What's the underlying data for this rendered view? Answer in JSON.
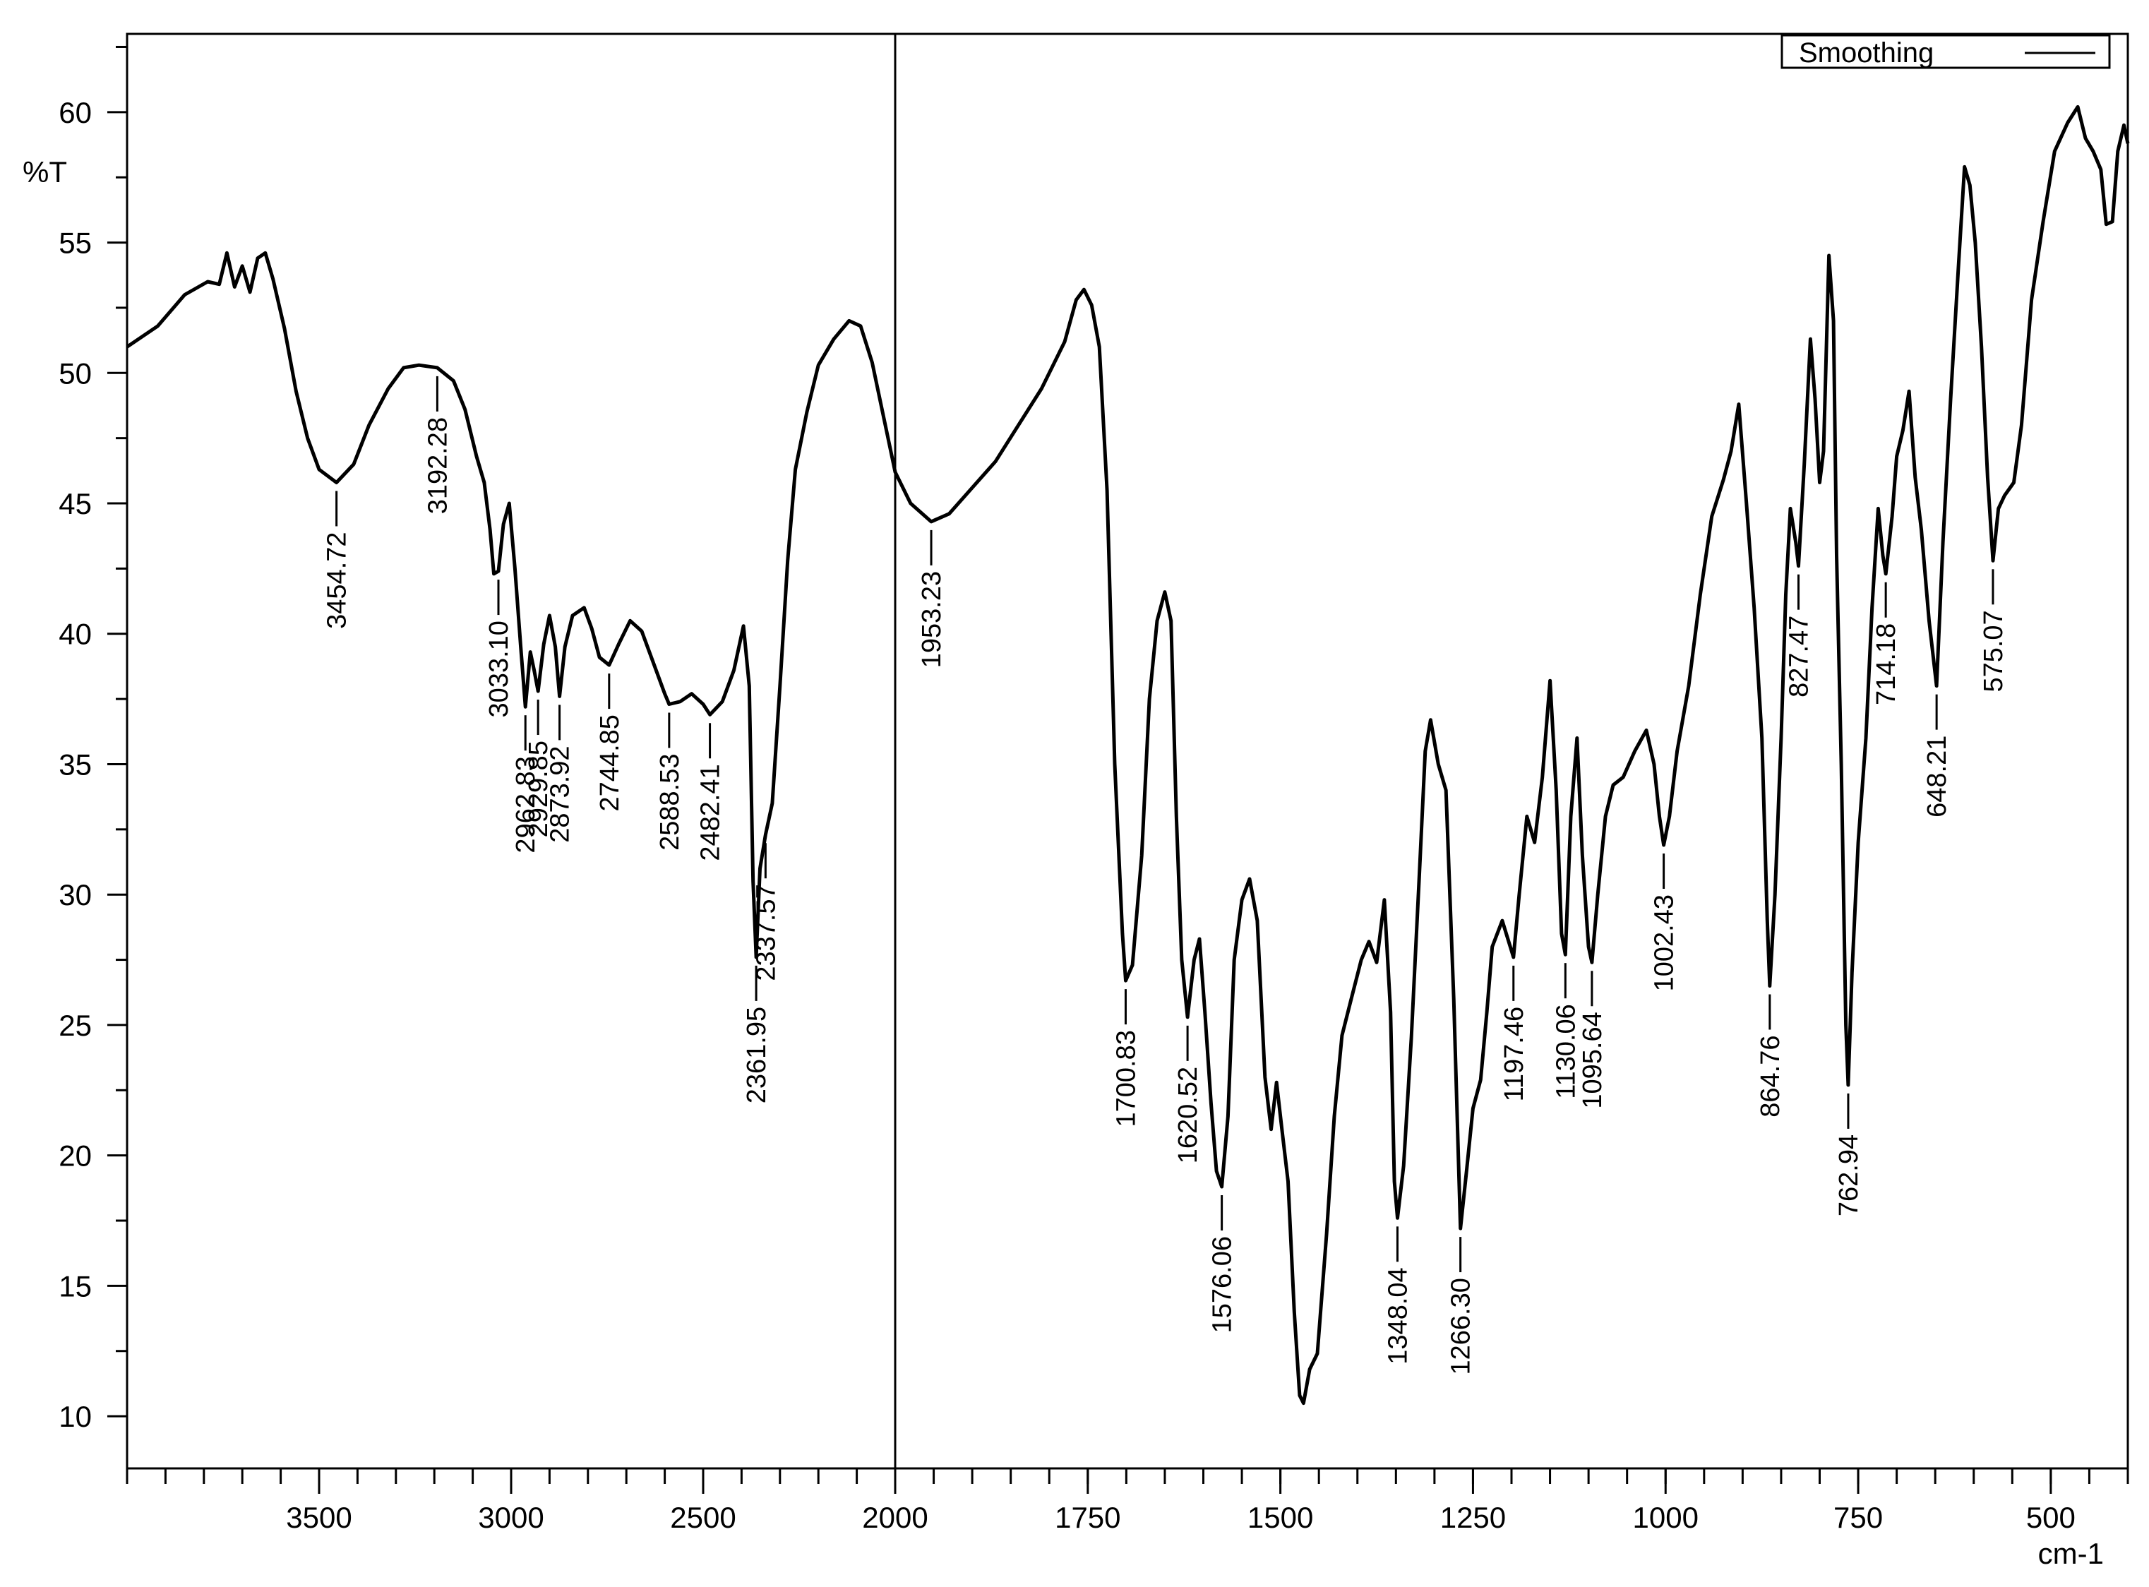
{
  "chart_data": {
    "type": "line",
    "title": "",
    "xlabel": "cm-1",
    "ylabel": "%T",
    "x_reversed": true,
    "x_axis": {
      "segments": [
        {
          "from": 4000,
          "to": 2000,
          "tick_labels": [
            3500,
            3000,
            2500,
            2000
          ],
          "minor_step": 100
        },
        {
          "from": 2000,
          "to": 400,
          "tick_labels": [
            1750,
            1500,
            1250,
            1000,
            750,
            500
          ],
          "minor_step": 50
        }
      ]
    },
    "ylim": [
      8,
      63
    ],
    "y_ticks": [
      10,
      15,
      20,
      25,
      30,
      35,
      40,
      45,
      50,
      55,
      60
    ],
    "grid": false,
    "divider_at": 2000,
    "legend": {
      "position": "top-right",
      "label": "Smoothing"
    },
    "series": [
      {
        "name": "Smoothing",
        "color": "#000000",
        "points": [
          [
            4000,
            51.0
          ],
          [
            3920,
            51.8
          ],
          [
            3850,
            53.0
          ],
          [
            3790,
            53.5
          ],
          [
            3760,
            53.4
          ],
          [
            3740,
            54.6
          ],
          [
            3720,
            53.3
          ],
          [
            3700,
            54.1
          ],
          [
            3680,
            53.1
          ],
          [
            3660,
            54.4
          ],
          [
            3640,
            54.6
          ],
          [
            3620,
            53.6
          ],
          [
            3590,
            51.7
          ],
          [
            3560,
            49.3
          ],
          [
            3530,
            47.5
          ],
          [
            3500,
            46.3
          ],
          [
            3454.72,
            45.8
          ],
          [
            3410,
            46.5
          ],
          [
            3370,
            48.0
          ],
          [
            3320,
            49.4
          ],
          [
            3280,
            50.2
          ],
          [
            3240,
            50.3
          ],
          [
            3192.28,
            50.2
          ],
          [
            3150,
            49.7
          ],
          [
            3120,
            48.6
          ],
          [
            3090,
            46.8
          ],
          [
            3070,
            45.8
          ],
          [
            3055,
            44.0
          ],
          [
            3045,
            42.3
          ],
          [
            3033.1,
            42.4
          ],
          [
            3020,
            44.2
          ],
          [
            3005,
            45.0
          ],
          [
            2990,
            42.5
          ],
          [
            2975,
            39.5
          ],
          [
            2962.83,
            37.2
          ],
          [
            2950,
            39.3
          ],
          [
            2940,
            38.6
          ],
          [
            2929.85,
            37.8
          ],
          [
            2915,
            39.6
          ],
          [
            2900,
            40.7
          ],
          [
            2885,
            39.5
          ],
          [
            2873.92,
            37.6
          ],
          [
            2860,
            39.5
          ],
          [
            2840,
            40.7
          ],
          [
            2810,
            41.0
          ],
          [
            2790,
            40.2
          ],
          [
            2770,
            39.1
          ],
          [
            2744.85,
            38.8
          ],
          [
            2720,
            39.6
          ],
          [
            2690,
            40.5
          ],
          [
            2660,
            40.1
          ],
          [
            2630,
            38.9
          ],
          [
            2600,
            37.7
          ],
          [
            2588.53,
            37.3
          ],
          [
            2560,
            37.4
          ],
          [
            2530,
            37.7
          ],
          [
            2500,
            37.3
          ],
          [
            2482.41,
            36.9
          ],
          [
            2450,
            37.4
          ],
          [
            2420,
            38.6
          ],
          [
            2395,
            40.3
          ],
          [
            2380,
            38.0
          ],
          [
            2370,
            30.5
          ],
          [
            2361.95,
            27.6
          ],
          [
            2352,
            31.0
          ],
          [
            2337.57,
            32.3
          ],
          [
            2320,
            33.5
          ],
          [
            2300,
            38.0
          ],
          [
            2280,
            42.8
          ],
          [
            2260,
            46.3
          ],
          [
            2230,
            48.5
          ],
          [
            2200,
            50.3
          ],
          [
            2160,
            51.3
          ],
          [
            2120,
            52.0
          ],
          [
            2090,
            51.8
          ],
          [
            2060,
            50.4
          ],
          [
            2030,
            48.3
          ],
          [
            2000,
            46.2
          ],
          [
            1980,
            45.0
          ],
          [
            1953.23,
            44.3
          ],
          [
            1930,
            44.6
          ],
          [
            1900,
            45.6
          ],
          [
            1870,
            46.6
          ],
          [
            1840,
            48.0
          ],
          [
            1810,
            49.4
          ],
          [
            1780,
            51.2
          ],
          [
            1765,
            52.8
          ],
          [
            1755,
            53.2
          ],
          [
            1745,
            52.6
          ],
          [
            1735,
            51.0
          ],
          [
            1725,
            45.5
          ],
          [
            1715,
            35.0
          ],
          [
            1705,
            28.5
          ],
          [
            1700.83,
            26.7
          ],
          [
            1692,
            27.3
          ],
          [
            1680,
            31.5
          ],
          [
            1670,
            37.5
          ],
          [
            1660,
            40.5
          ],
          [
            1650,
            41.6
          ],
          [
            1642,
            40.5
          ],
          [
            1635,
            33.0
          ],
          [
            1628,
            27.5
          ],
          [
            1620.52,
            25.3
          ],
          [
            1612,
            27.5
          ],
          [
            1605,
            28.3
          ],
          [
            1598,
            25.5
          ],
          [
            1590,
            22.0
          ],
          [
            1583,
            19.4
          ],
          [
            1576.06,
            18.8
          ],
          [
            1568,
            21.5
          ],
          [
            1560,
            27.5
          ],
          [
            1550,
            29.8
          ],
          [
            1540,
            30.6
          ],
          [
            1530,
            29.0
          ],
          [
            1520,
            23.0
          ],
          [
            1512,
            21.0
          ],
          [
            1505,
            22.8
          ],
          [
            1498,
            21.0
          ],
          [
            1490,
            19.0
          ],
          [
            1482,
            14.0
          ],
          [
            1475,
            10.8
          ],
          [
            1470,
            10.5
          ],
          [
            1462,
            11.8
          ],
          [
            1452,
            12.4
          ],
          [
            1440,
            17.0
          ],
          [
            1430,
            21.5
          ],
          [
            1420,
            24.6
          ],
          [
            1408,
            26.0
          ],
          [
            1395,
            27.5
          ],
          [
            1385,
            28.2
          ],
          [
            1375,
            27.4
          ],
          [
            1365,
            29.8
          ],
          [
            1357,
            25.5
          ],
          [
            1352,
            19.0
          ],
          [
            1348.04,
            17.6
          ],
          [
            1340,
            19.6
          ],
          [
            1330,
            24.5
          ],
          [
            1320,
            30.5
          ],
          [
            1312,
            35.5
          ],
          [
            1305,
            36.7
          ],
          [
            1295,
            35.0
          ],
          [
            1285,
            34.0
          ],
          [
            1275,
            26.0
          ],
          [
            1266.3,
            17.2
          ],
          [
            1258,
            19.5
          ],
          [
            1250,
            21.8
          ],
          [
            1240,
            22.9
          ],
          [
            1232,
            25.5
          ],
          [
            1225,
            28.0
          ],
          [
            1212,
            29.0
          ],
          [
            1197.46,
            27.6
          ],
          [
            1190,
            30.0
          ],
          [
            1180,
            33.0
          ],
          [
            1170,
            32.0
          ],
          [
            1160,
            34.5
          ],
          [
            1150,
            38.2
          ],
          [
            1142,
            34.0
          ],
          [
            1135,
            28.5
          ],
          [
            1130.06,
            27.7
          ],
          [
            1123,
            33.0
          ],
          [
            1115,
            36.0
          ],
          [
            1108,
            31.5
          ],
          [
            1100,
            28.0
          ],
          [
            1095.64,
            27.4
          ],
          [
            1088,
            30.0
          ],
          [
            1078,
            33.0
          ],
          [
            1068,
            34.2
          ],
          [
            1055,
            34.5
          ],
          [
            1040,
            35.5
          ],
          [
            1025,
            36.3
          ],
          [
            1015,
            35.0
          ],
          [
            1008,
            33.0
          ],
          [
            1002.43,
            31.9
          ],
          [
            995,
            33.0
          ],
          [
            985,
            35.5
          ],
          [
            970,
            38.0
          ],
          [
            955,
            41.5
          ],
          [
            940,
            44.5
          ],
          [
            925,
            45.9
          ],
          [
            915,
            47.0
          ],
          [
            905,
            48.8
          ],
          [
            895,
            45.0
          ],
          [
            885,
            41.0
          ],
          [
            875,
            36.0
          ],
          [
            868,
            29.0
          ],
          [
            864.76,
            26.5
          ],
          [
            858,
            30.0
          ],
          [
            850,
            36.0
          ],
          [
            844,
            41.5
          ],
          [
            838,
            44.8
          ],
          [
            831,
            43.5
          ],
          [
            827.47,
            42.6
          ],
          [
            820,
            46.5
          ],
          [
            812,
            51.3
          ],
          [
            806,
            49.0
          ],
          [
            800,
            45.8
          ],
          [
            795,
            47.0
          ],
          [
            788,
            54.5
          ],
          [
            782,
            52.0
          ],
          [
            778,
            43.0
          ],
          [
            772,
            35.0
          ],
          [
            766,
            25.0
          ],
          [
            762.94,
            22.7
          ],
          [
            758,
            27.0
          ],
          [
            750,
            32.0
          ],
          [
            740,
            36.0
          ],
          [
            732,
            41.0
          ],
          [
            724,
            44.8
          ],
          [
            718,
            43.0
          ],
          [
            714.18,
            42.3
          ],
          [
            706,
            44.5
          ],
          [
            700,
            46.8
          ],
          [
            692,
            47.8
          ],
          [
            684,
            49.3
          ],
          [
            676,
            46.0
          ],
          [
            668,
            44.0
          ],
          [
            658,
            40.5
          ],
          [
            648.21,
            38.0
          ],
          [
            640,
            43.5
          ],
          [
            630,
            49.0
          ],
          [
            620,
            54.0
          ],
          [
            612,
            57.9
          ],
          [
            605,
            57.2
          ],
          [
            598,
            55.0
          ],
          [
            590,
            51.0
          ],
          [
            582,
            46.0
          ],
          [
            575.07,
            42.8
          ],
          [
            568,
            44.8
          ],
          [
            560,
            45.3
          ],
          [
            548,
            45.8
          ],
          [
            538,
            48.0
          ],
          [
            525,
            52.8
          ],
          [
            510,
            55.8
          ],
          [
            495,
            58.5
          ],
          [
            478,
            59.6
          ],
          [
            465,
            60.2
          ],
          [
            455,
            59.0
          ],
          [
            445,
            58.5
          ],
          [
            435,
            57.8
          ],
          [
            428,
            55.7
          ],
          [
            420,
            55.8
          ],
          [
            413,
            58.5
          ],
          [
            405,
            59.5
          ],
          [
            400,
            58.8
          ]
        ]
      }
    ],
    "peak_labels": [
      {
        "x": 3454.72,
        "label": "3454.72"
      },
      {
        "x": 3192.28,
        "label": "3192.28"
      },
      {
        "x": 3033.1,
        "label": "3033.10"
      },
      {
        "x": 2962.83,
        "label": "2962.83"
      },
      {
        "x": 2929.85,
        "label": "2929.85"
      },
      {
        "x": 2873.92,
        "label": "2873.92"
      },
      {
        "x": 2744.85,
        "label": "2744.85"
      },
      {
        "x": 2588.53,
        "label": "2588.53"
      },
      {
        "x": 2482.41,
        "label": "2482.41"
      },
      {
        "x": 2361.95,
        "label": "2361.95"
      },
      {
        "x": 2337.57,
        "label": "2337.57"
      },
      {
        "x": 1953.23,
        "label": "1953.23"
      },
      {
        "x": 1700.83,
        "label": "1700.83"
      },
      {
        "x": 1620.52,
        "label": "1620.52"
      },
      {
        "x": 1576.06,
        "label": "1576.06"
      },
      {
        "x": 1348.04,
        "label": "1348.04"
      },
      {
        "x": 1266.3,
        "label": "1266.30"
      },
      {
        "x": 1197.46,
        "label": "1197.46"
      },
      {
        "x": 1130.06,
        "label": "1130.06"
      },
      {
        "x": 1095.64,
        "label": "1095.64"
      },
      {
        "x": 1002.43,
        "label": "1002.43"
      },
      {
        "x": 864.76,
        "label": "864.76"
      },
      {
        "x": 827.47,
        "label": "827.47"
      },
      {
        "x": 762.94,
        "label": "762.94"
      },
      {
        "x": 714.18,
        "label": "714.18"
      },
      {
        "x": 648.21,
        "label": "648.21"
      },
      {
        "x": 575.07,
        "label": "575.07"
      }
    ]
  }
}
